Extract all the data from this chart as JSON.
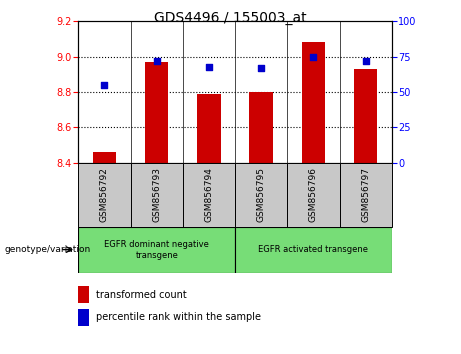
{
  "title": "GDS4496 / 155003_at",
  "samples": [
    "GSM856792",
    "GSM856793",
    "GSM856794",
    "GSM856795",
    "GSM856796",
    "GSM856797"
  ],
  "bar_values": [
    8.46,
    8.97,
    8.79,
    8.8,
    9.08,
    8.93
  ],
  "percentile_values": [
    55,
    72,
    68,
    67,
    75,
    72
  ],
  "bar_color": "#cc0000",
  "dot_color": "#0000cc",
  "ylim_left": [
    8.4,
    9.2
  ],
  "ylim_right": [
    0,
    100
  ],
  "yticks_left": [
    8.4,
    8.6,
    8.8,
    9.0,
    9.2
  ],
  "yticks_right": [
    0,
    25,
    50,
    75,
    100
  ],
  "grid_ticks": [
    8.6,
    8.8,
    9.0
  ],
  "group1_label": "EGFR dominant negative\ntransgene",
  "group2_label": "EGFR activated transgene",
  "group_color": "#77dd77",
  "sample_box_color": "#c8c8c8",
  "xlabel_group": "genotype/variation",
  "legend_bar": "transformed count",
  "legend_dot": "percentile rank within the sample",
  "bar_width": 0.45,
  "base_value": 8.4
}
